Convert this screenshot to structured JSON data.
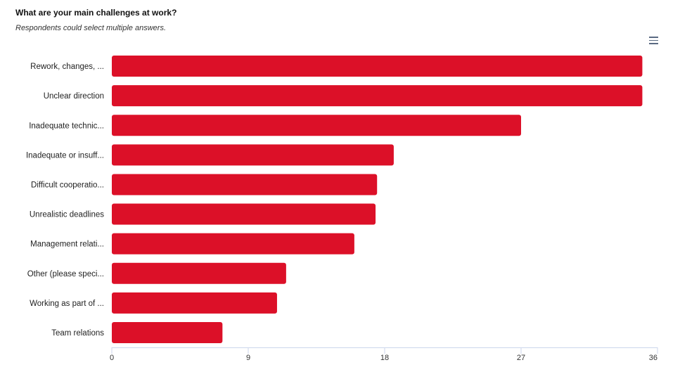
{
  "header": {
    "title": "What are your main challenges at work?",
    "subtitle": "Respondents could select multiple answers."
  },
  "colors": {
    "bar": "#dc1028",
    "axis": "#ccd6eb"
  },
  "chart_data": {
    "type": "bar",
    "orientation": "horizontal",
    "categories": [
      "Rework, changes, ...",
      "Unclear direction",
      "Inadequate technic...",
      "Inadequate or insuff...",
      "Difficult cooperatio...",
      "Unrealistic deadlines",
      "Management relati...",
      "Other (please speci...",
      "Working as part of ...",
      "Team relations"
    ],
    "values": [
      35,
      35,
      27,
      18.6,
      17.5,
      17.4,
      16,
      11.5,
      10.9,
      7.3
    ],
    "xlim": [
      0,
      36
    ],
    "xticks": [
      "0",
      "9",
      "18",
      "27",
      "36"
    ],
    "grid": false,
    "legend": "none"
  }
}
